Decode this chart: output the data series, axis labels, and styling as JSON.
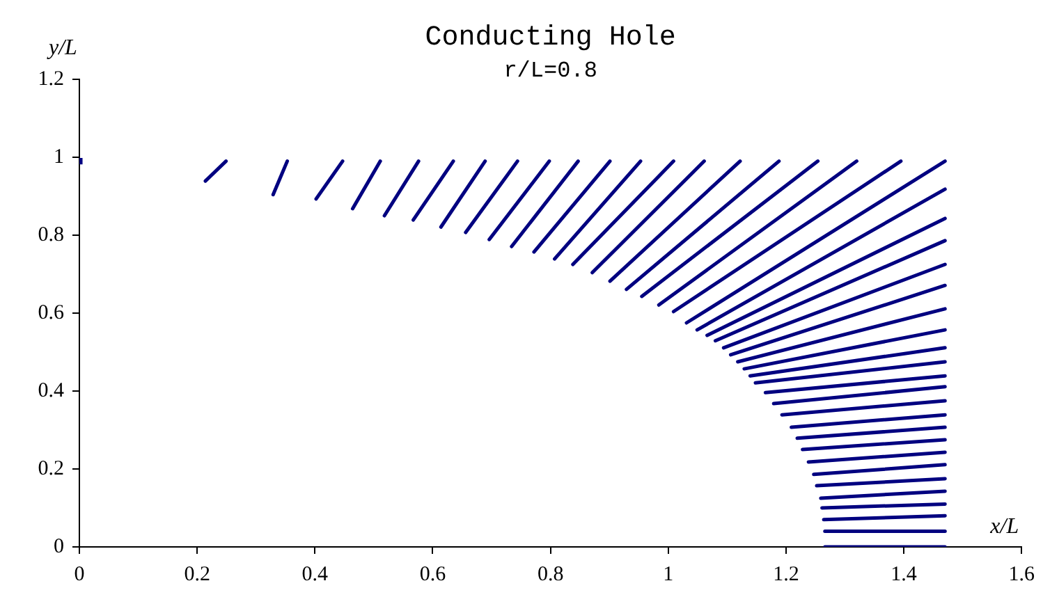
{
  "chart_data": {
    "type": "scatter",
    "title": "Conducting Hole",
    "subtitle": "r/L=0.8",
    "xlabel": "x/L",
    "ylabel": "y/L",
    "xlim": [
      0,
      1.6
    ],
    "ylim": [
      0,
      1.2
    ],
    "xticks": [
      0,
      0.2,
      0.4,
      0.6,
      0.8,
      1,
      1.2,
      1.4,
      1.6
    ],
    "yticks": [
      0,
      0.2,
      0.4,
      0.6,
      0.8,
      1,
      1.2
    ],
    "series": [
      {
        "type": "scatter",
        "marker": "square",
        "color": "#000080",
        "x": [
          0
        ],
        "values": [
          0.99
        ]
      },
      {
        "type": "line",
        "line_style": "solid",
        "color": "#000080",
        "x": [
          0.214,
          0.249
        ],
        "values": [
          0.939,
          0.99
        ]
      },
      {
        "type": "line",
        "line_style": "solid",
        "color": "#000080",
        "x": [
          0.329,
          0.353
        ],
        "values": [
          0.904,
          0.99
        ]
      },
      {
        "type": "line",
        "line_style": "solid",
        "color": "#000080",
        "x": [
          0.402,
          0.447
        ],
        "values": [
          0.893,
          0.99
        ]
      },
      {
        "type": "line",
        "line_style": "solid",
        "color": "#000080",
        "x": [
          0.464,
          0.511
        ],
        "values": [
          0.868,
          0.99
        ]
      },
      {
        "type": "line",
        "line_style": "solid",
        "color": "#000080",
        "x": [
          0.518,
          0.576
        ],
        "values": [
          0.85,
          0.99
        ]
      },
      {
        "type": "line",
        "line_style": "solid",
        "color": "#000080",
        "x": [
          0.567,
          0.635
        ],
        "values": [
          0.839,
          0.99
        ]
      },
      {
        "type": "line",
        "line_style": "solid",
        "color": "#000080",
        "x": [
          0.614,
          0.689
        ],
        "values": [
          0.821,
          0.99
        ]
      },
      {
        "type": "line",
        "line_style": "solid",
        "color": "#000080",
        "x": [
          0.656,
          0.744
        ],
        "values": [
          0.807,
          0.99
        ]
      },
      {
        "type": "line",
        "line_style": "solid",
        "color": "#000080",
        "x": [
          0.696,
          0.798
        ],
        "values": [
          0.789,
          0.99
        ]
      },
      {
        "type": "line",
        "line_style": "solid",
        "color": "#000080",
        "x": [
          0.734,
          0.847
        ],
        "values": [
          0.771,
          0.99
        ]
      },
      {
        "type": "line",
        "line_style": "solid",
        "color": "#000080",
        "x": [
          0.772,
          0.901
        ],
        "values": [
          0.757,
          0.99
        ]
      },
      {
        "type": "line",
        "line_style": "solid",
        "color": "#000080",
        "x": [
          0.807,
          0.953
        ],
        "values": [
          0.739,
          0.99
        ]
      },
      {
        "type": "line",
        "line_style": "solid",
        "color": "#000080",
        "x": [
          0.838,
          1.009
        ],
        "values": [
          0.725,
          0.99
        ]
      },
      {
        "type": "line",
        "line_style": "solid",
        "color": "#000080",
        "x": [
          0.871,
          1.061
        ],
        "values": [
          0.704,
          0.99
        ]
      },
      {
        "type": "line",
        "line_style": "solid",
        "color": "#000080",
        "x": [
          0.901,
          1.122
        ],
        "values": [
          0.682,
          0.99
        ]
      },
      {
        "type": "line",
        "line_style": "solid",
        "color": "#000080",
        "x": [
          0.929,
          1.188
        ],
        "values": [
          0.661,
          0.99
        ]
      },
      {
        "type": "line",
        "line_style": "solid",
        "color": "#000080",
        "x": [
          0.955,
          1.254
        ],
        "values": [
          0.643,
          0.99
        ]
      },
      {
        "type": "line",
        "line_style": "solid",
        "color": "#000080",
        "x": [
          0.984,
          1.32
        ],
        "values": [
          0.621,
          0.99
        ]
      },
      {
        "type": "line",
        "line_style": "solid",
        "color": "#000080",
        "x": [
          1.009,
          1.395
        ],
        "values": [
          0.604,
          0.99
        ]
      },
      {
        "type": "line",
        "line_style": "solid",
        "color": "#000080",
        "x": [
          1.031,
          1.47
        ],
        "values": [
          0.575,
          0.99
        ]
      },
      {
        "type": "line",
        "line_style": "solid",
        "color": "#000080",
        "x": [
          1.049,
          1.47
        ],
        "values": [
          0.557,
          0.918
        ]
      },
      {
        "type": "line",
        "line_style": "solid",
        "color": "#000080",
        "x": [
          1.066,
          1.47
        ],
        "values": [
          0.543,
          0.843
        ]
      },
      {
        "type": "line",
        "line_style": "solid",
        "color": "#000080",
        "x": [
          1.08,
          1.47
        ],
        "values": [
          0.529,
          0.786
        ]
      },
      {
        "type": "line",
        "line_style": "solid",
        "color": "#000080",
        "x": [
          1.094,
          1.47
        ],
        "values": [
          0.511,
          0.725
        ]
      },
      {
        "type": "line",
        "line_style": "solid",
        "color": "#000080",
        "x": [
          1.106,
          1.47
        ],
        "values": [
          0.493,
          0.671
        ]
      },
      {
        "type": "line",
        "line_style": "solid",
        "color": "#000080",
        "x": [
          1.118,
          1.47
        ],
        "values": [
          0.475,
          0.611
        ]
      },
      {
        "type": "line",
        "line_style": "solid",
        "color": "#000080",
        "x": [
          1.129,
          1.47
        ],
        "values": [
          0.457,
          0.557
        ]
      },
      {
        "type": "line",
        "line_style": "solid",
        "color": "#000080",
        "x": [
          1.139,
          1.47
        ],
        "values": [
          0.439,
          0.511
        ]
      },
      {
        "type": "line",
        "line_style": "solid",
        "color": "#000080",
        "x": [
          1.148,
          1.47
        ],
        "values": [
          0.421,
          0.475
        ]
      },
      {
        "type": "line",
        "line_style": "solid",
        "color": "#000080",
        "x": [
          1.165,
          1.47
        ],
        "values": [
          0.396,
          0.439
        ]
      },
      {
        "type": "line",
        "line_style": "solid",
        "color": "#000080",
        "x": [
          1.179,
          1.47
        ],
        "values": [
          0.368,
          0.411
        ]
      },
      {
        "type": "line",
        "line_style": "solid",
        "color": "#000080",
        "x": [
          1.193,
          1.47
        ],
        "values": [
          0.339,
          0.375
        ]
      },
      {
        "type": "line",
        "line_style": "solid",
        "color": "#000080",
        "x": [
          1.209,
          1.47
        ],
        "values": [
          0.307,
          0.339
        ]
      },
      {
        "type": "line",
        "line_style": "solid",
        "color": "#000080",
        "x": [
          1.219,
          1.47
        ],
        "values": [
          0.279,
          0.307
        ]
      },
      {
        "type": "line",
        "line_style": "solid",
        "color": "#000080",
        "x": [
          1.228,
          1.47
        ],
        "values": [
          0.25,
          0.275
        ]
      },
      {
        "type": "line",
        "line_style": "solid",
        "color": "#000080",
        "x": [
          1.238,
          1.47
        ],
        "values": [
          0.218,
          0.243
        ]
      },
      {
        "type": "line",
        "line_style": "solid",
        "color": "#000080",
        "x": [
          1.247,
          1.47
        ],
        "values": [
          0.186,
          0.211
        ]
      },
      {
        "type": "line",
        "line_style": "solid",
        "color": "#000080",
        "x": [
          1.252,
          1.47
        ],
        "values": [
          0.157,
          0.175
        ]
      },
      {
        "type": "line",
        "line_style": "solid",
        "color": "#000080",
        "x": [
          1.259,
          1.47
        ],
        "values": [
          0.125,
          0.143
        ]
      },
      {
        "type": "line",
        "line_style": "solid",
        "color": "#000080",
        "x": [
          1.261,
          1.47
        ],
        "values": [
          0.1,
          0.11
        ]
      },
      {
        "type": "line",
        "line_style": "solid",
        "color": "#000080",
        "x": [
          1.264,
          1.47
        ],
        "values": [
          0.07,
          0.08
        ]
      },
      {
        "type": "line",
        "line_style": "solid",
        "color": "#000080",
        "x": [
          1.266,
          1.47
        ],
        "values": [
          0.04,
          0.04
        ]
      },
      {
        "type": "line",
        "line_style": "solid",
        "color": "#000080",
        "x": [
          1.266,
          1.47
        ],
        "values": [
          0,
          0
        ]
      }
    ]
  }
}
